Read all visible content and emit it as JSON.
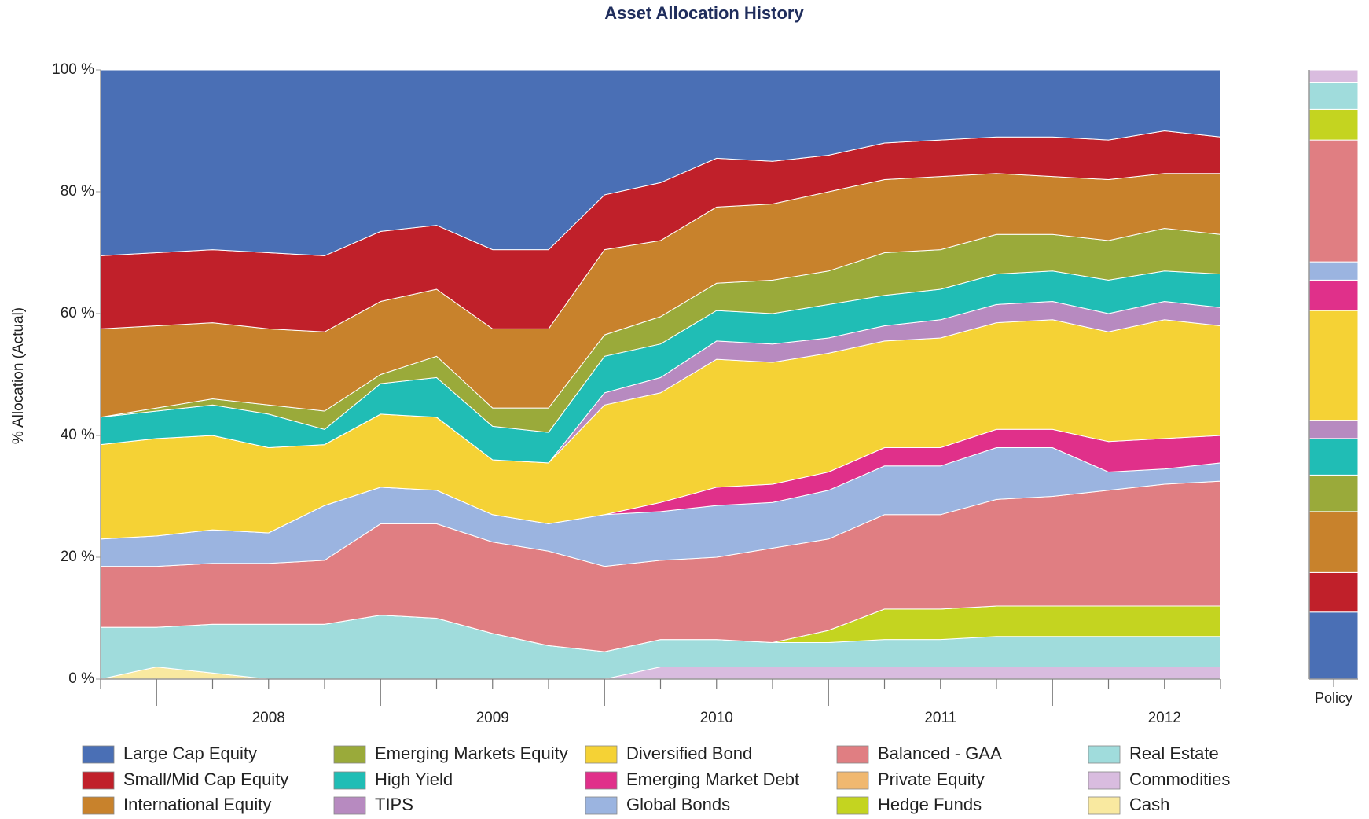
{
  "chart_data": {
    "type": "stacked_area",
    "title": "Asset Allocation History",
    "y_label": "% Allocation (Actual)",
    "x": [
      2007.75,
      2008.0,
      2008.25,
      2008.5,
      2008.75,
      2009.0,
      2009.25,
      2009.5,
      2009.75,
      2010.0,
      2010.25,
      2010.5,
      2010.75,
      2011.0,
      2011.25,
      2011.5,
      2011.75,
      2012.0,
      2012.25,
      2012.5,
      2012.75
    ],
    "xlim": [
      2007.75,
      2012.75
    ],
    "xticks": [
      {
        "value": 2008.5,
        "label": "2008"
      },
      {
        "value": 2009.5,
        "label": "2009"
      },
      {
        "value": 2010.5,
        "label": "2010"
      },
      {
        "value": 2011.5,
        "label": "2011"
      },
      {
        "value": 2012.5,
        "label": "2012"
      }
    ],
    "ylim": [
      0,
      100
    ],
    "yticks": [
      {
        "value": 0,
        "label": "0 %"
      },
      {
        "value": 20,
        "label": "20 %"
      },
      {
        "value": 40,
        "label": "40 %"
      },
      {
        "value": 60,
        "label": "60 %"
      },
      {
        "value": 80,
        "label": "80 %"
      },
      {
        "value": 100,
        "label": "100 %"
      }
    ],
    "series": [
      {
        "name": "Large Cap Equity",
        "color": "#4a6fb5",
        "values": [
          30.5,
          30,
          29.5,
          30,
          30.5,
          26.5,
          25.5,
          29.5,
          29.5,
          20.5,
          18.5,
          14.5,
          15,
          14,
          12,
          11.5,
          11,
          11,
          11.5,
          10,
          11
        ]
      },
      {
        "name": "Small/Mid Cap Equity",
        "color": "#c0202a",
        "values": [
          12,
          12,
          12,
          12.5,
          12.5,
          11.5,
          10.5,
          13,
          13,
          9,
          9.5,
          8,
          7,
          6,
          6,
          6,
          6,
          6.5,
          6.5,
          7,
          6
        ]
      },
      {
        "name": "International Equity",
        "color": "#c8822c",
        "values": [
          14.5,
          13.5,
          12.5,
          12.5,
          13,
          12,
          11,
          13,
          13,
          14,
          12.5,
          12.5,
          12.5,
          13,
          12,
          12,
          10,
          9.5,
          10,
          9,
          10
        ]
      },
      {
        "name": "Emerging Markets Equity",
        "color": "#9aaa3a",
        "values": [
          0,
          0.5,
          1,
          1.5,
          3,
          1.5,
          3.5,
          3,
          4,
          3.5,
          4.5,
          4.5,
          5.5,
          5.5,
          7,
          6.5,
          6.5,
          6,
          6.5,
          7,
          6.5
        ]
      },
      {
        "name": "High Yield",
        "color": "#20bdb5",
        "values": [
          4.5,
          4.5,
          5,
          5.5,
          2.5,
          5,
          6.5,
          5.5,
          5,
          6,
          5.5,
          5,
          5,
          5.5,
          5,
          5,
          5,
          5,
          5.5,
          5,
          5.5
        ]
      },
      {
        "name": "TIPS",
        "color": "#b78ac0",
        "values": [
          0,
          0,
          0,
          0,
          0,
          0,
          0,
          0,
          0,
          2,
          2.5,
          3,
          3,
          2.5,
          2.5,
          3,
          3,
          3,
          3,
          3,
          3
        ]
      },
      {
        "name": "Diversified Bond",
        "color": "#f5d235",
        "values": [
          15.5,
          16,
          15.5,
          14,
          10,
          12,
          12,
          9,
          10,
          18,
          18,
          21,
          20,
          19.5,
          17.5,
          18,
          17.5,
          18,
          18,
          19.5,
          18
        ]
      },
      {
        "name": "Emerging Market Debt",
        "color": "#e0308a",
        "values": [
          0,
          0,
          0,
          0,
          0,
          0,
          0,
          0,
          0,
          0,
          1.5,
          3,
          3,
          3,
          3,
          3,
          3,
          3,
          5,
          5,
          4.5
        ]
      },
      {
        "name": "Global Bonds",
        "color": "#9bb4e0",
        "values": [
          4.5,
          5,
          5.5,
          5,
          9,
          6,
          5.5,
          4.5,
          4.5,
          8.5,
          8,
          8.5,
          7.5,
          8,
          8,
          8,
          8.5,
          8,
          3,
          2.5,
          3
        ]
      },
      {
        "name": "Balanced - GAA",
        "color": "#e07e82",
        "values": [
          10,
          10,
          10,
          10,
          10.5,
          15,
          15.5,
          15,
          15.5,
          14,
          13,
          13.5,
          15.5,
          15,
          15.5,
          15.5,
          17.5,
          18,
          19,
          20,
          20.5
        ]
      },
      {
        "name": "Private Equity",
        "color": "#f0b870",
        "values": [
          0,
          0,
          0,
          0,
          0,
          0,
          0,
          0,
          0,
          0,
          0,
          0,
          0,
          0,
          0,
          0,
          0,
          0,
          0,
          0,
          0
        ]
      },
      {
        "name": "Hedge Funds",
        "color": "#c4d420",
        "values": [
          0,
          0,
          0,
          0,
          0,
          0,
          0,
          0,
          0,
          0,
          0,
          0,
          0,
          2,
          5,
          5,
          5,
          5,
          5,
          5,
          5
        ]
      },
      {
        "name": "Real Estate",
        "color": "#a0dcdc",
        "values": [
          8.5,
          6.5,
          8,
          9,
          9,
          10.5,
          10,
          7.5,
          5.5,
          4.5,
          4.5,
          4.5,
          4,
          4,
          4.5,
          4.5,
          5,
          5,
          5,
          5,
          5
        ]
      },
      {
        "name": "Commodities",
        "color": "#d9bcdf",
        "values": [
          0,
          0,
          0,
          0,
          0,
          0,
          0,
          0,
          0,
          0,
          2,
          2,
          2,
          2,
          2,
          2,
          2,
          2,
          2,
          2,
          2
        ]
      },
      {
        "name": "Cash",
        "color": "#f9e9a0",
        "values": [
          0,
          2,
          1,
          0,
          0,
          0,
          0,
          0,
          0,
          0,
          0,
          0,
          0,
          0,
          0,
          0,
          0,
          0,
          0,
          0,
          0
        ]
      }
    ],
    "policy": {
      "label": "Policy",
      "values": [
        11,
        6.5,
        10,
        6,
        6,
        3,
        18,
        5,
        3,
        20,
        0,
        5,
        4.5,
        2,
        0
      ]
    }
  }
}
